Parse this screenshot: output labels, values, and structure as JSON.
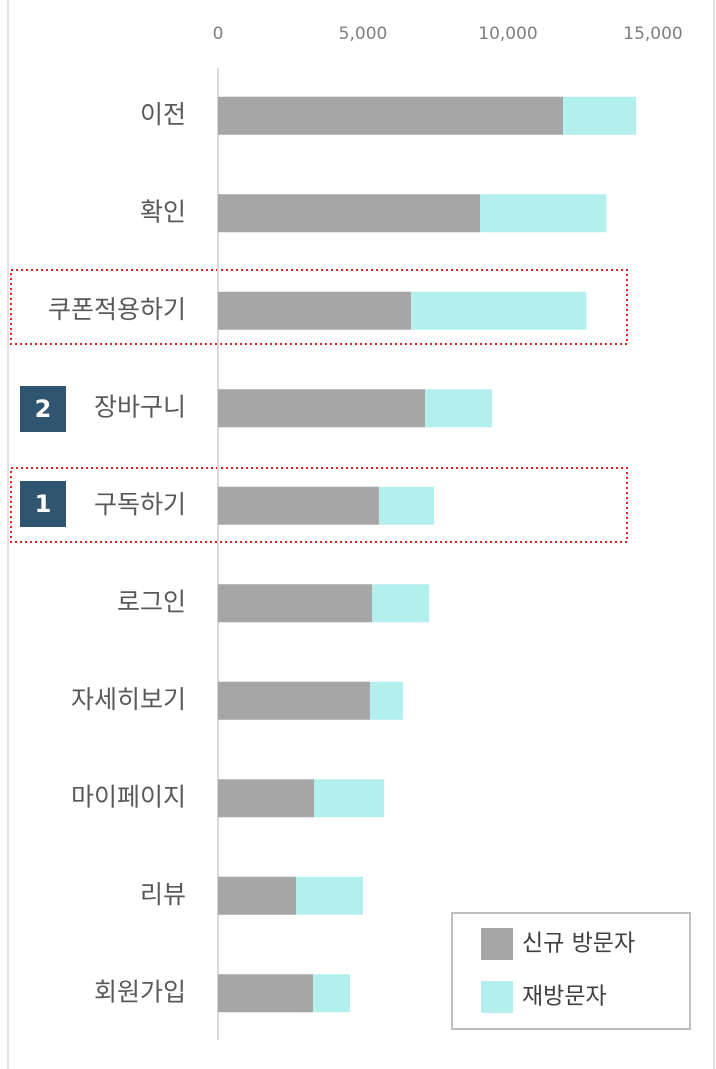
{
  "chart_data": {
    "type": "bar",
    "orientation": "horizontal",
    "stacked": true,
    "categories": [
      "이전",
      "확인",
      "쿠폰적용하기",
      "장바구니",
      "구독하기",
      "로그인",
      "자세히보기",
      "마이페이지",
      "리뷰",
      "회원가입"
    ],
    "series": [
      {
        "name": "신규 방문자",
        "color": "#a6a6a6",
        "values": [
          11900,
          9040,
          6660,
          7140,
          5550,
          5310,
          5240,
          3310,
          2690,
          3280
        ]
      },
      {
        "name": "재방문자",
        "color": "#b3efec",
        "values": [
          2520,
          4350,
          6040,
          2310,
          1900,
          1970,
          1140,
          2420,
          2310,
          1270
        ]
      }
    ],
    "xlim": [
      0,
      15000
    ],
    "xticks": [
      0,
      {
        "value": 5000,
        "label": "5,000"
      },
      {
        "value": 10000,
        "label": "10,000"
      },
      {
        "value": 15000,
        "label": "15,000"
      }
    ],
    "legend": "lower right",
    "badges": [
      "2",
      "1"
    ]
  }
}
